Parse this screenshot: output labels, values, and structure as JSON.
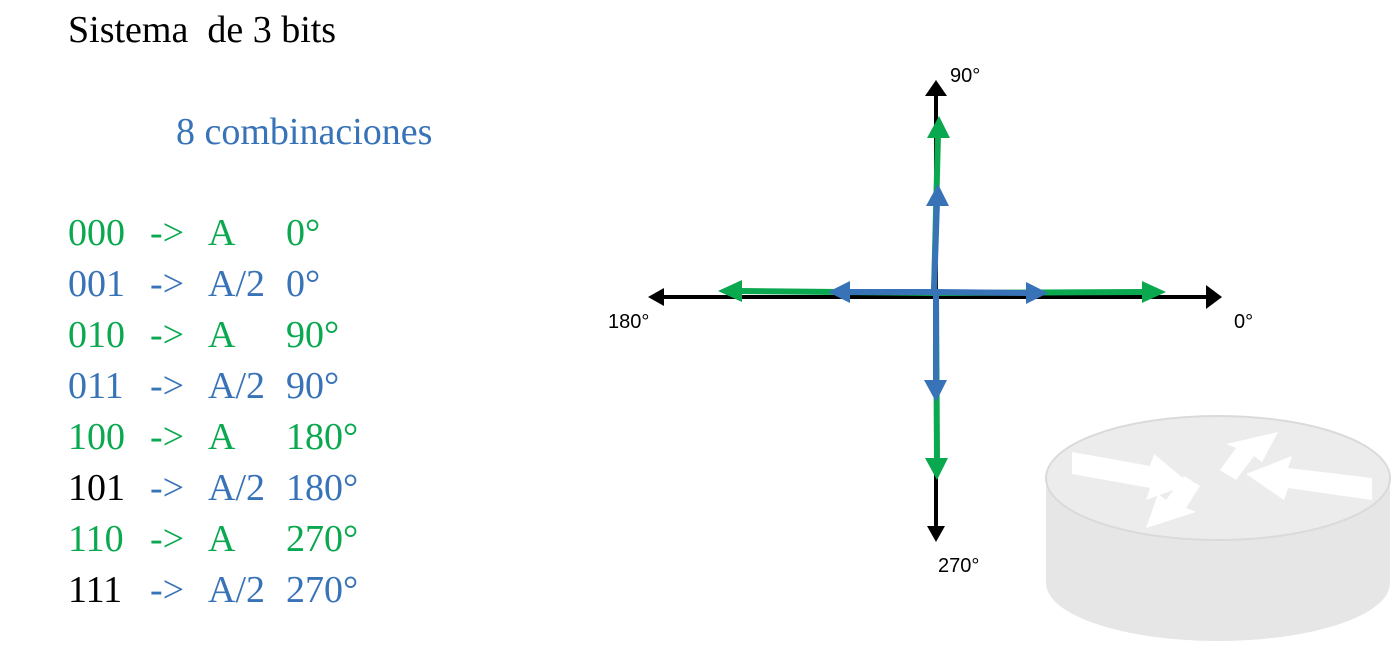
{
  "title": "Sistema  de 3 bits",
  "subtitle": "8 combinaciones",
  "colors": {
    "green": "#0aa84f",
    "blue": "#3873b8",
    "black": "#000000",
    "router": "#e6e6e6"
  },
  "combinations": [
    {
      "code": "000",
      "arrow": "->",
      "amplitude": "A",
      "phase": "0°",
      "code_color": "green",
      "rest_color": "green"
    },
    {
      "code": "001",
      "arrow": "->",
      "amplitude": "A/2",
      "phase": "0°",
      "code_color": "blue",
      "rest_color": "blue"
    },
    {
      "code": "010",
      "arrow": "->",
      "amplitude": "A",
      "phase": "90°",
      "code_color": "green",
      "rest_color": "green"
    },
    {
      "code": "011",
      "arrow": "->",
      "amplitude": "A/2",
      "phase": "90°",
      "code_color": "blue",
      "rest_color": "blue"
    },
    {
      "code": "100",
      "arrow": "->",
      "amplitude": "A",
      "phase": "180°",
      "code_color": "green",
      "rest_color": "green"
    },
    {
      "code": "101",
      "arrow": "->",
      "amplitude": "A/2",
      "phase": "180°",
      "code_color": "black",
      "rest_color": "blue"
    },
    {
      "code": "110",
      "arrow": "->",
      "amplitude": "A",
      "phase": "270°",
      "code_color": "green",
      "rest_color": "green"
    },
    {
      "code": "111",
      "arrow": "->",
      "amplitude": "A/2",
      "phase": "270°",
      "code_color": "black",
      "rest_color": "blue"
    }
  ],
  "axes": {
    "label_0": "0°",
    "label_90": "90°",
    "label_180": "180°",
    "label_270": "270°"
  },
  "icons": {
    "router": "router-icon"
  }
}
